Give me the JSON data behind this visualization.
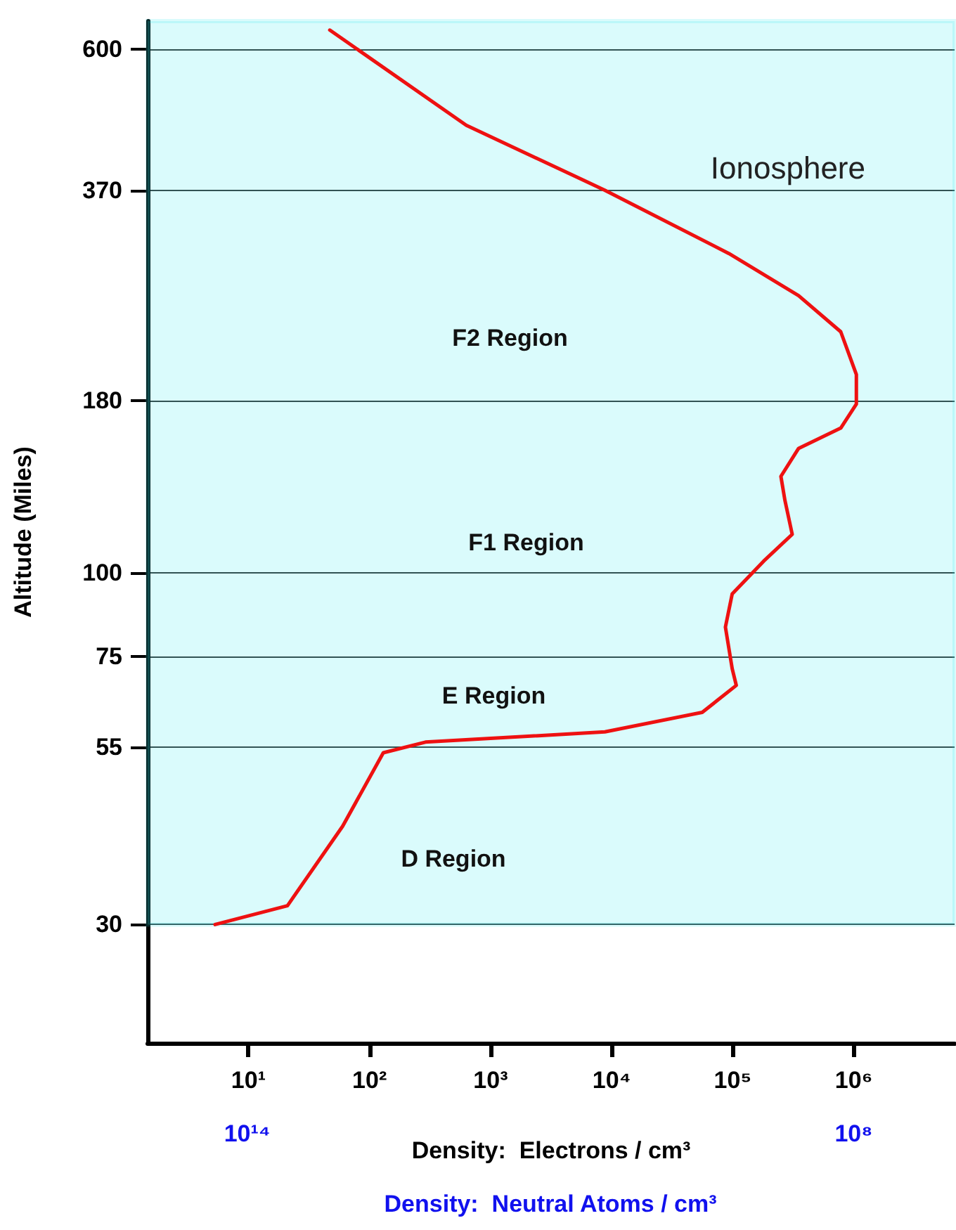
{
  "chart_data": {
    "type": "line",
    "xlabel": "Density:  Electrons / cm³",
    "x2label": "Density:  Neutral Atoms / cm³",
    "ylabel": "Altitude (Miles)",
    "log": "xy",
    "grid": "y",
    "marker": "none",
    "line_style": "solid",
    "xlim": [
      1.47,
      6800000
    ],
    "xticks": [
      {
        "value": 10,
        "label": "10¹"
      },
      {
        "value": 100,
        "label": "10²"
      },
      {
        "value": 1000,
        "label": "10³"
      },
      {
        "value": 10000,
        "label": "10⁴"
      },
      {
        "value": 100000,
        "label": "10⁵"
      },
      {
        "value": 1000000,
        "label": "10⁶"
      }
    ],
    "x2lim": [
      100000000000000.0,
      100000000.0
    ],
    "x2ticks": [
      {
        "value": 100000000000000.0,
        "label": "10¹⁴"
      },
      {
        "value": 100000000.0,
        "label": "10⁸"
      }
    ],
    "ylim": [
      20,
      660
    ],
    "yticks": [
      30,
      55,
      75,
      100,
      180,
      370,
      600
    ],
    "series": [
      {
        "color": "#ee1111",
        "x": [
          47,
          630,
          8800,
          93000,
          350000,
          780000,
          1050000,
          1050000,
          780000,
          350000,
          250000,
          270000,
          310000,
          180000,
          99000,
          87000,
          99000,
          107000,
          56000,
          8800,
          290,
          130,
          60,
          21,
          5.3
        ],
        "values": [
          640,
          462,
          370,
          298,
          258,
          228,
          197,
          178,
          164,
          153,
          139,
          128,
          114,
          104,
          93,
          83,
          72,
          68,
          62,
          58,
          56,
          54,
          42,
          32,
          30
        ]
      }
    ],
    "bands": [
      {
        "axis": "y",
        "from": 30,
        "to": 660,
        "label": "Ionosphere",
        "color": "#33e8ec"
      }
    ],
    "annotations": [
      "F2 Region",
      "F1 Region",
      "E Region",
      "D Region"
    ]
  }
}
